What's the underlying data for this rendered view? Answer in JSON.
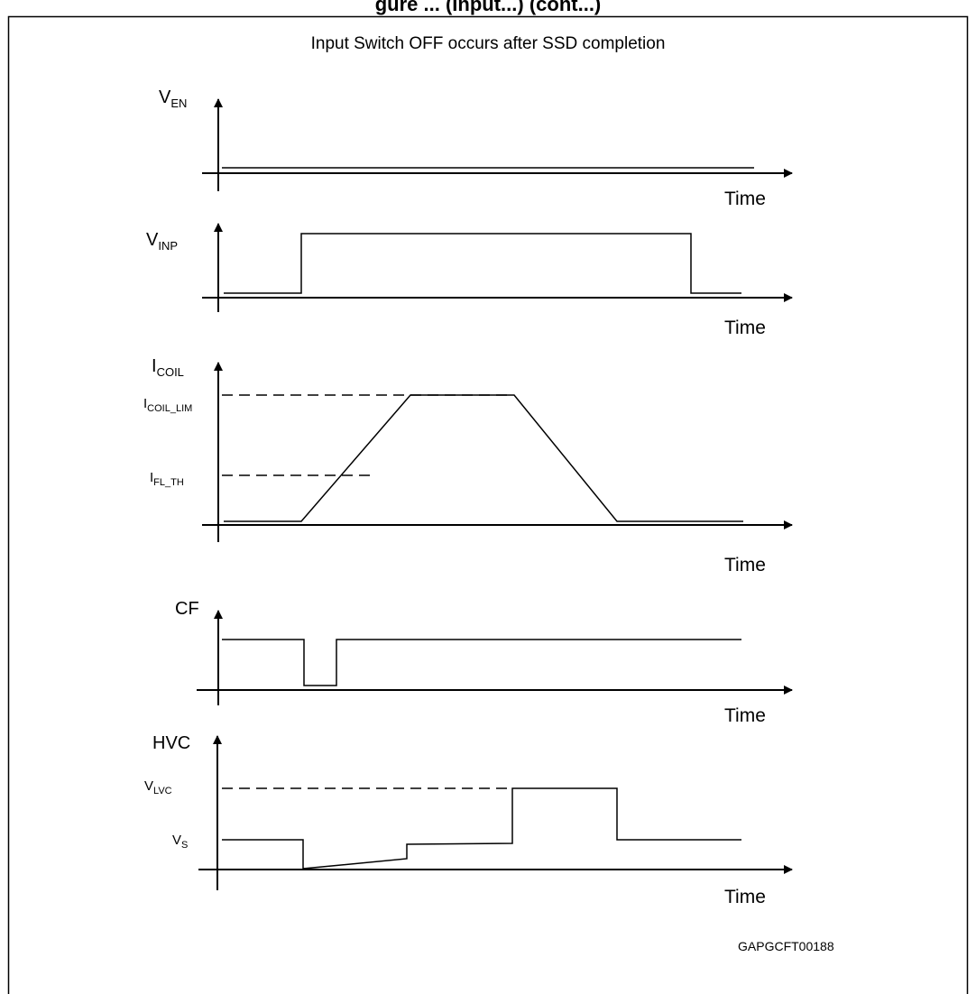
{
  "header": {
    "partial_text": "gure ... (Input...) (cont...)"
  },
  "diagram": {
    "title": "Input Switch OFF occurs after SSD completion",
    "time_label": "Time",
    "footer_code": "GAPGCFT00188",
    "panels": {
      "ven": {
        "label_main": "V",
        "label_sub": "EN"
      },
      "vinp": {
        "label_main": "V",
        "label_sub": "INP"
      },
      "icoil": {
        "label_main": "I",
        "label_sub": "COIL",
        "level_lim_main": "I",
        "level_lim_sub": "COIL_LIM",
        "level_th_main": "I",
        "level_th_sub": "FL_TH"
      },
      "cf": {
        "label": "CF"
      },
      "hvc": {
        "label": "HVC",
        "level_lvc_main": "V",
        "level_lvc_sub": "LVC",
        "level_s_main": "V",
        "level_s_sub": "S"
      }
    }
  },
  "colors": {
    "line": "#000000",
    "background": "#ffffff"
  }
}
